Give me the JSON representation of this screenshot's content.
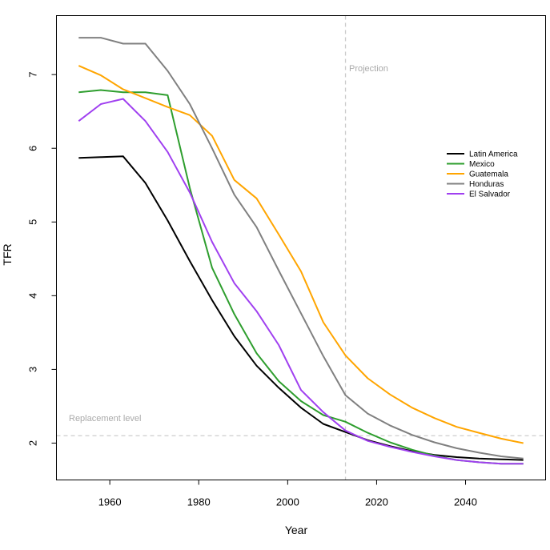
{
  "chart_data": {
    "type": "line",
    "xlabel": "Year",
    "ylabel": "TFR",
    "xlim": [
      1948,
      2058
    ],
    "ylim": [
      1.5,
      7.8
    ],
    "x_ticks": [
      1960,
      1980,
      2000,
      2020,
      2040
    ],
    "y_ticks": [
      2,
      3,
      4,
      5,
      6,
      7
    ],
    "grid": false,
    "legend_position": "right",
    "x": [
      1953,
      1958,
      1963,
      1968,
      1973,
      1978,
      1983,
      1988,
      1993,
      1998,
      2003,
      2008,
      2013,
      2018,
      2023,
      2028,
      2033,
      2038,
      2043,
      2048,
      2053
    ],
    "series": [
      {
        "name": "Latin America",
        "color": "#000000",
        "values": [
          5.87,
          5.88,
          5.89,
          5.53,
          5.02,
          4.47,
          3.94,
          3.45,
          3.05,
          2.75,
          2.48,
          2.26,
          2.15,
          2.04,
          1.96,
          1.89,
          1.84,
          1.81,
          1.79,
          1.78,
          1.77
        ]
      },
      {
        "name": "Mexico",
        "color": "#2e9e2e",
        "values": [
          6.76,
          6.79,
          6.76,
          6.76,
          6.72,
          5.46,
          4.38,
          3.75,
          3.22,
          2.84,
          2.57,
          2.38,
          2.29,
          2.14,
          2.01,
          1.91,
          1.83,
          1.77,
          1.74,
          1.72,
          1.72
        ]
      },
      {
        "name": "Guatemala",
        "color": "#ffa500",
        "values": [
          7.12,
          6.99,
          6.8,
          6.68,
          6.56,
          6.45,
          6.17,
          5.57,
          5.32,
          4.83,
          4.33,
          3.64,
          3.19,
          2.88,
          2.66,
          2.48,
          2.34,
          2.22,
          2.14,
          2.06,
          2.0
        ]
      },
      {
        "name": "Honduras",
        "color": "#808080",
        "values": [
          7.5,
          7.5,
          7.42,
          7.42,
          7.05,
          6.6,
          6.0,
          5.37,
          4.93,
          4.34,
          3.76,
          3.18,
          2.65,
          2.4,
          2.24,
          2.11,
          2.01,
          1.93,
          1.87,
          1.82,
          1.79
        ]
      },
      {
        "name": "El Salvador",
        "color": "#a040f0",
        "values": [
          6.37,
          6.6,
          6.67,
          6.37,
          5.95,
          5.4,
          4.73,
          4.17,
          3.79,
          3.33,
          2.72,
          2.42,
          2.17,
          2.03,
          1.95,
          1.88,
          1.82,
          1.77,
          1.74,
          1.72,
          1.72
        ]
      }
    ],
    "reference_lines": {
      "replacement_level": {
        "value": 2.1,
        "label": "Replacement level"
      },
      "projection_start": {
        "value": 2013,
        "label": "Projection"
      }
    }
  }
}
